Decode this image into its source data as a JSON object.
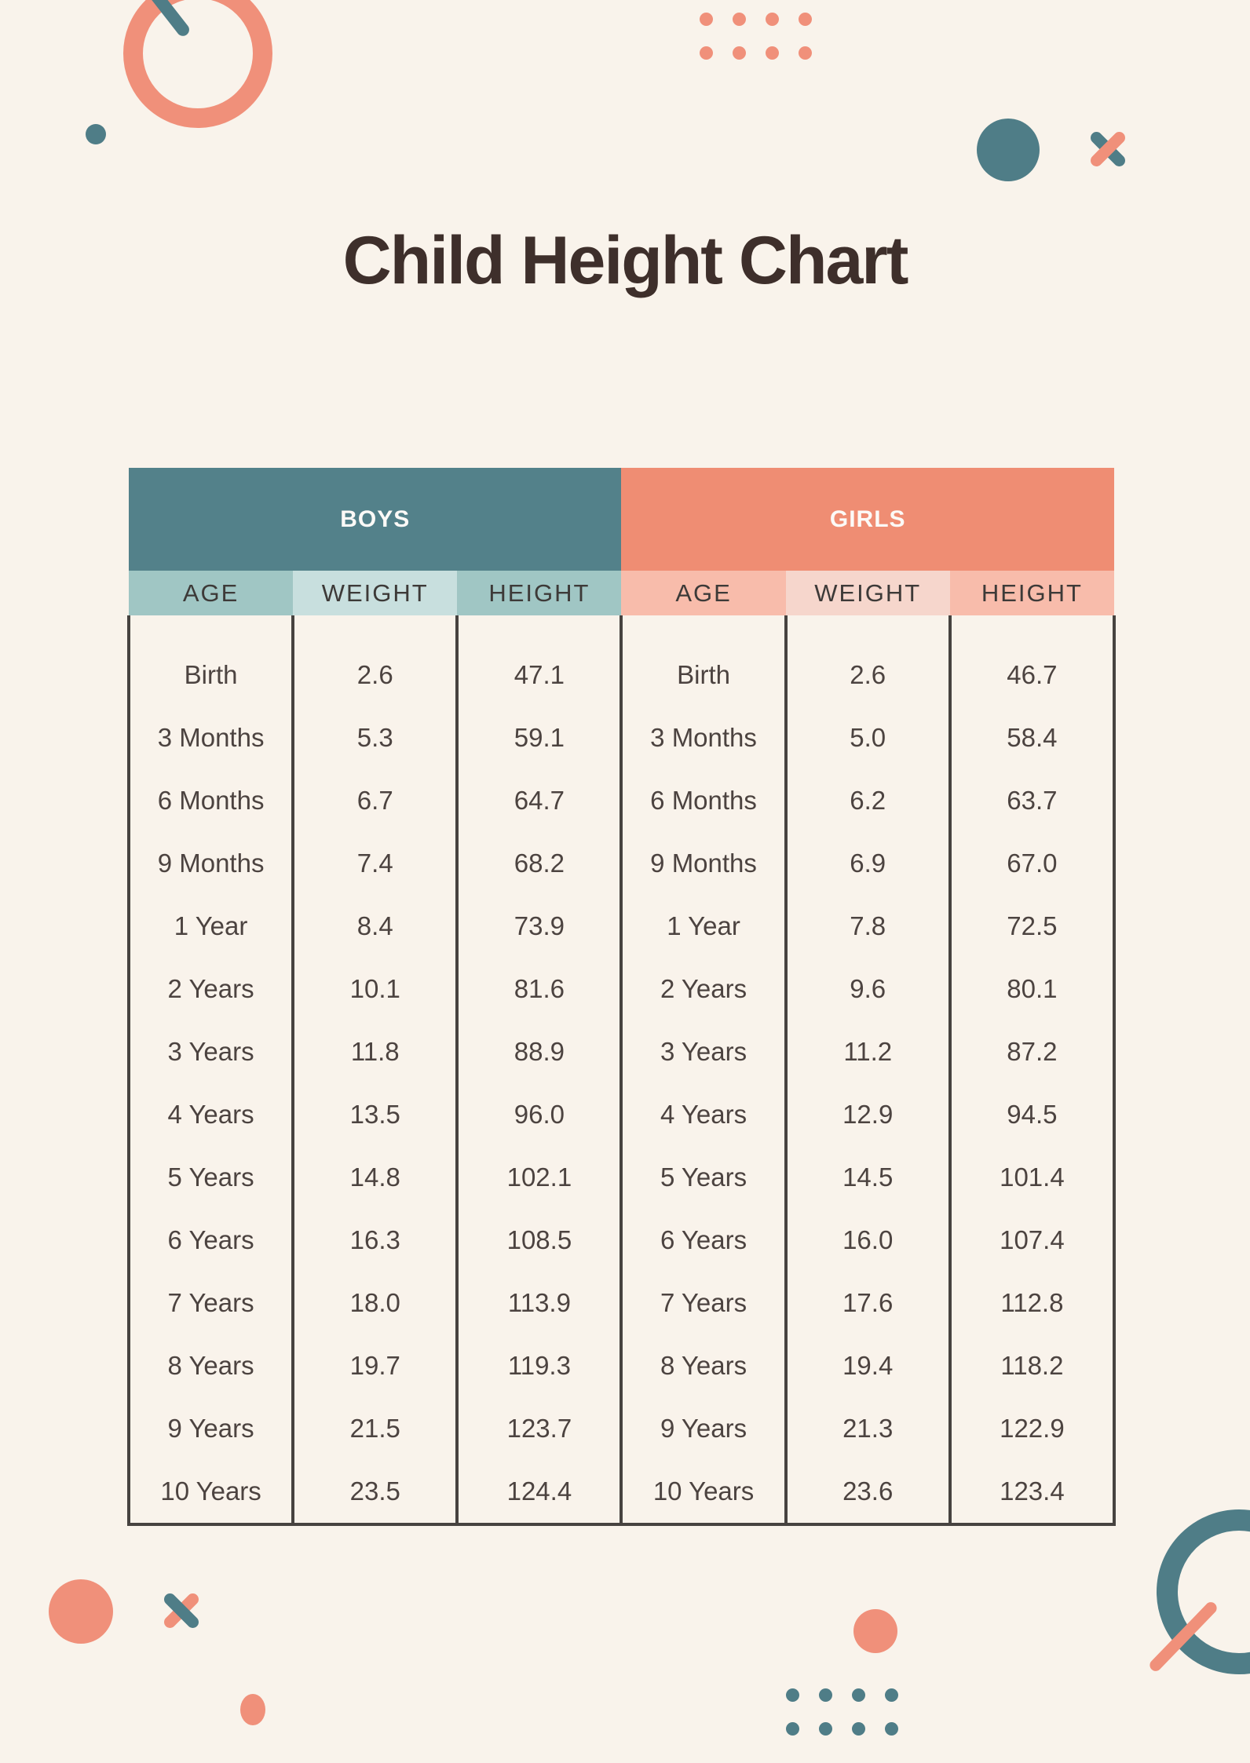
{
  "title": "Child Height Chart",
  "palette": {
    "background": "#f9f3eb",
    "teal": "#4f7d87",
    "teal_header": "#53818a",
    "teal_sub": "#a0c6c4",
    "teal_sub_light": "#c8dfde",
    "coral": "#f0907a",
    "coral_header": "#ef8d73",
    "coral_sub": "#f8bcab",
    "coral_sub_light": "#f6d6cc",
    "border": "#474340",
    "title_ink": "#3e2f2b",
    "cell_ink": "#4c4340",
    "header_text": "#fcfaf7"
  },
  "table": {
    "groups": [
      {
        "label": "BOYS"
      },
      {
        "label": "GIRLS"
      }
    ],
    "column_labels": [
      "AGE",
      "WEIGHT",
      "HEIGHT"
    ],
    "rows": [
      [
        "Birth",
        "2.6",
        "47.1",
        "Birth",
        "2.6",
        "46.7"
      ],
      [
        "3 Months",
        "5.3",
        "59.1",
        "3 Months",
        "5.0",
        "58.4"
      ],
      [
        "6 Months",
        "6.7",
        "64.7",
        "6 Months",
        "6.2",
        "63.7"
      ],
      [
        "9 Months",
        "7.4",
        "68.2",
        "9 Months",
        "6.9",
        "67.0"
      ],
      [
        "1 Year",
        "8.4",
        "73.9",
        "1 Year",
        "7.8",
        "72.5"
      ],
      [
        "2 Years",
        "10.1",
        "81.6",
        "2 Years",
        "9.6",
        "80.1"
      ],
      [
        "3 Years",
        "11.8",
        "88.9",
        "3 Years",
        "11.2",
        "87.2"
      ],
      [
        "4 Years",
        "13.5",
        "96.0",
        "4 Years",
        "12.9",
        "94.5"
      ],
      [
        "5 Years",
        "14.8",
        "102.1",
        "5 Years",
        "14.5",
        "101.4"
      ],
      [
        "6 Years",
        "16.3",
        "108.5",
        "6 Years",
        "16.0",
        "107.4"
      ],
      [
        "7 Years",
        "18.0",
        "113.9",
        "7 Years",
        "17.6",
        "112.8"
      ],
      [
        "8 Years",
        "19.7",
        "119.3",
        "8 Years",
        "19.4",
        "118.2"
      ],
      [
        "9 Years",
        "21.5",
        "123.7",
        "9 Years",
        "21.3",
        "122.9"
      ],
      [
        "10 Years",
        "23.5",
        "124.4",
        "10 Years",
        "23.6",
        "123.4"
      ]
    ]
  },
  "chart_data": {
    "type": "table",
    "title": "Child Height Chart",
    "categories": [
      "Birth",
      "3 Months",
      "6 Months",
      "9 Months",
      "1 Year",
      "2 Years",
      "3 Years",
      "4 Years",
      "5 Years",
      "6 Years",
      "7 Years",
      "8 Years",
      "9 Years",
      "10 Years"
    ],
    "series": [
      {
        "name": "Boys Weight",
        "values": [
          2.6,
          5.3,
          6.7,
          7.4,
          8.4,
          10.1,
          11.8,
          13.5,
          14.8,
          16.3,
          18.0,
          19.7,
          21.5,
          23.5
        ]
      },
      {
        "name": "Boys Height",
        "values": [
          47.1,
          59.1,
          64.7,
          68.2,
          73.9,
          81.6,
          88.9,
          96.0,
          102.1,
          108.5,
          113.9,
          119.3,
          123.7,
          124.4
        ]
      },
      {
        "name": "Girls Weight",
        "values": [
          2.6,
          5.0,
          6.2,
          6.9,
          7.8,
          9.6,
          11.2,
          12.9,
          14.5,
          16.0,
          17.6,
          19.4,
          21.3,
          23.6
        ]
      },
      {
        "name": "Girls Height",
        "values": [
          46.7,
          58.4,
          63.7,
          67.0,
          72.5,
          80.1,
          87.2,
          94.5,
          101.4,
          107.4,
          112.8,
          118.2,
          122.9,
          123.4
        ]
      }
    ]
  }
}
